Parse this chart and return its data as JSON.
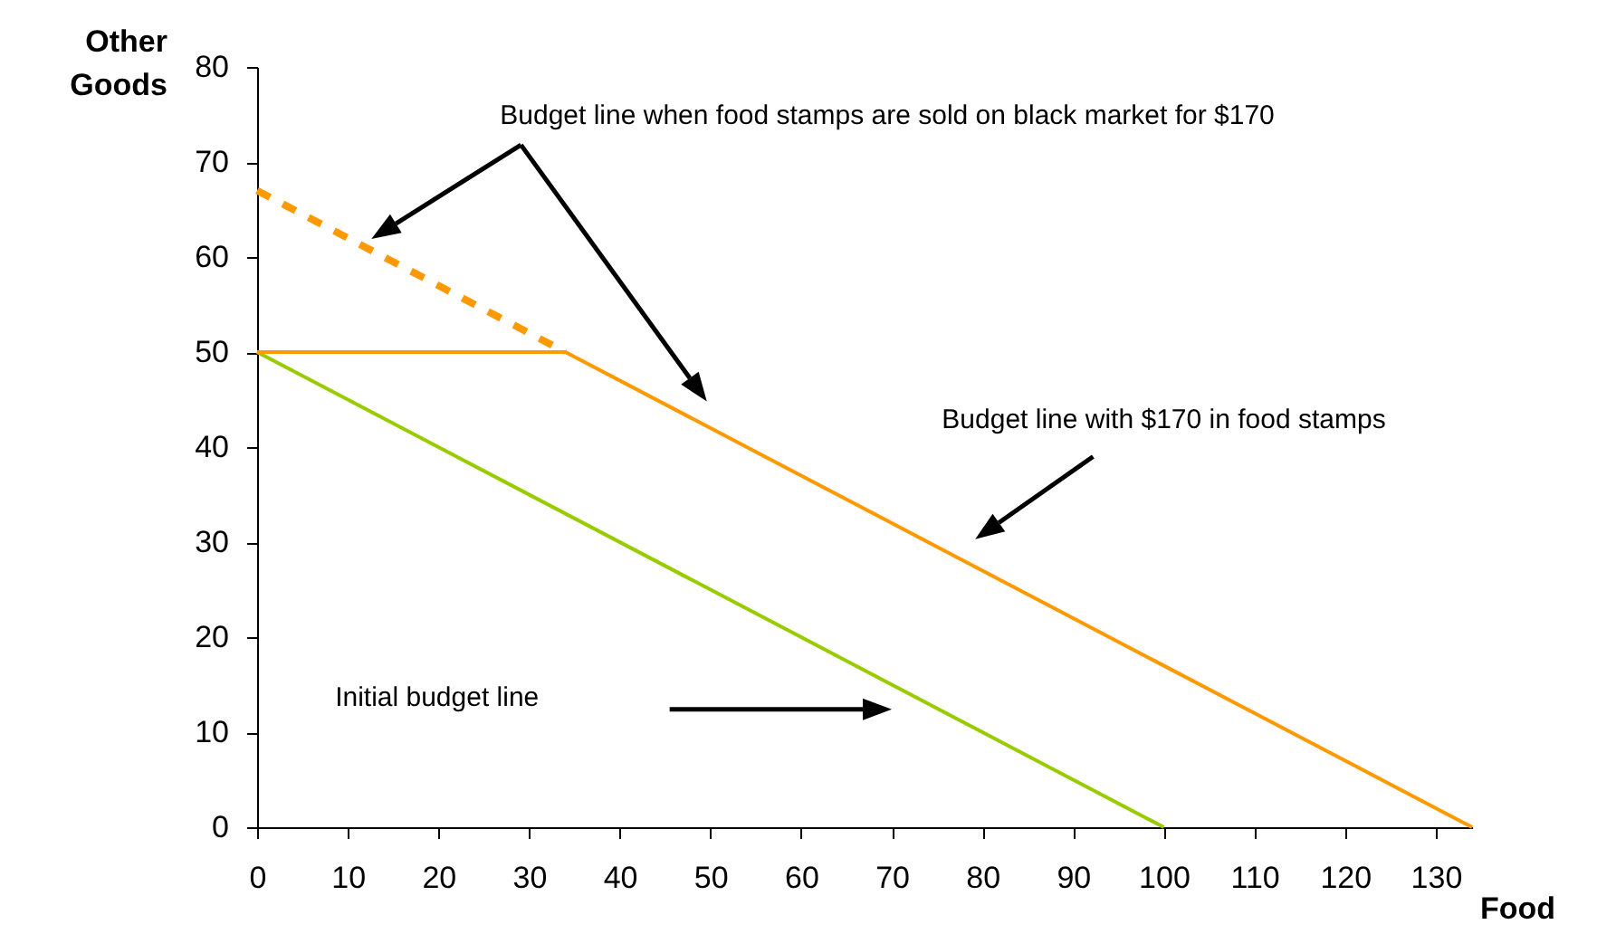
{
  "chart_data": {
    "type": "line",
    "xlabel": "Food",
    "ylabel": "Other Goods",
    "xlim": [
      0,
      134
    ],
    "ylim": [
      0,
      80
    ],
    "xticks": [
      0,
      10,
      20,
      30,
      40,
      50,
      60,
      70,
      80,
      90,
      100,
      110,
      120,
      130
    ],
    "yticks": [
      0,
      10,
      20,
      30,
      40,
      50,
      60,
      70,
      80
    ],
    "grid": false,
    "marker": "none",
    "series": [
      {
        "color": "#99cc00",
        "x": [
          0,
          100
        ],
        "values": [
          50,
          0
        ],
        "line_style": "solid"
      },
      {
        "color": "#ff9900",
        "x": [
          0,
          34,
          134
        ],
        "values": [
          50,
          50,
          0
        ],
        "line_style": "solid"
      },
      {
        "color": "#ff9900",
        "x": [
          0,
          34
        ],
        "values": [
          67,
          50
        ],
        "line_style": "dashed"
      }
    ],
    "annotations": [
      "Budget line when food stamps are sold on black market for $170",
      "Budget line with $170 in food stamps",
      "Initial budget line"
    ]
  }
}
